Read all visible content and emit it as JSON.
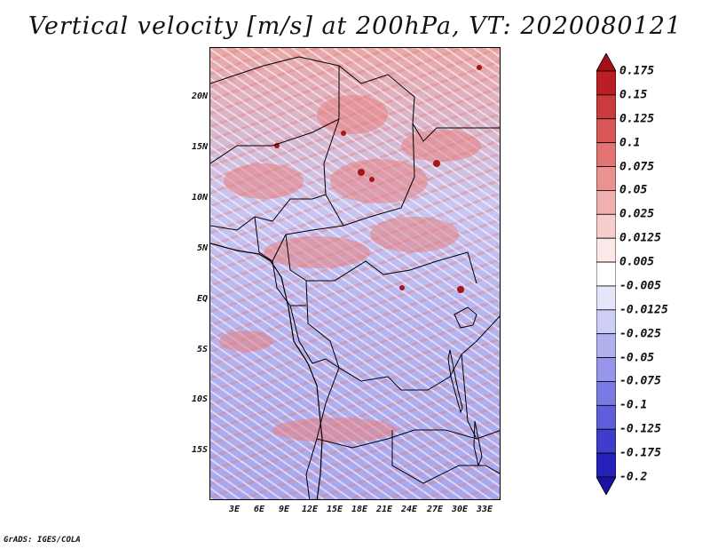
{
  "title": "Vertical velocity [m/s] at 200hPa, VT: 2020080121",
  "footer": "GrADS: IGES/COLA",
  "map": {
    "lat_labels": [
      "20N",
      "15N",
      "10N",
      "5N",
      "EQ",
      "5S",
      "10S",
      "15S"
    ],
    "lon_labels": [
      "3E",
      "6E",
      "9E",
      "12E",
      "15E",
      "18E",
      "21E",
      "24E",
      "27E",
      "30E",
      "33E"
    ]
  },
  "colorbar": {
    "labels": [
      "0.175",
      "0.15",
      "0.125",
      "0.1",
      "0.075",
      "0.05",
      "0.025",
      "0.0125",
      "0.005",
      "-0.005",
      "-0.0125",
      "-0.025",
      "-0.05",
      "-0.075",
      "-0.1",
      "-0.125",
      "-0.175",
      "-0.2"
    ],
    "colors": [
      "#a50f15",
      "#bb1f26",
      "#cc3b3b",
      "#d85757",
      "#e27474",
      "#ea9292",
      "#f1b0b0",
      "#f7cdcd",
      "#fbe8e8",
      "#ffffff",
      "#e6e6fb",
      "#cdcdf6",
      "#b2b1f0",
      "#9796ea",
      "#7b7ae2",
      "#5f5dd9",
      "#3f3dcb",
      "#2420b8",
      "#1a12a0"
    ]
  }
}
